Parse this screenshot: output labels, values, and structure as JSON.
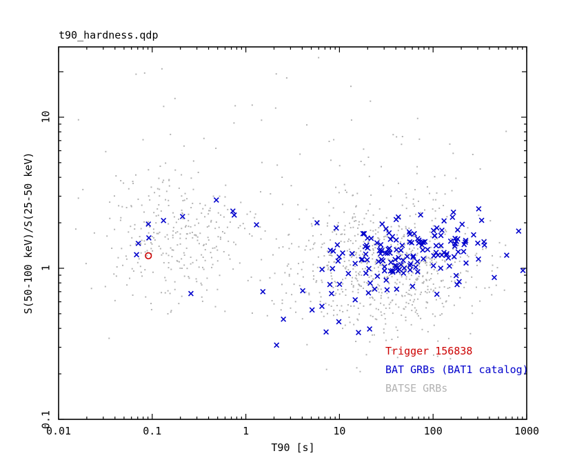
{
  "window": {
    "title": "t90_hardness.qdp"
  },
  "colors": {
    "background": "#ffffff",
    "frame": "#000000",
    "batse": "#b2b2b2",
    "bat": "#0000cc",
    "trigger": "#cc0000"
  },
  "chart_data": {
    "type": "scatter",
    "title": "t90_hardness.qdp",
    "xlabel": "T90 [s]",
    "ylabel": "S(50-100 keV)/S(25-50 keV)",
    "x_axis": {
      "scale": "log",
      "min": 0.01,
      "max": 1000,
      "tick_values": [
        0.01,
        0.1,
        1,
        10,
        100,
        1000
      ],
      "tick_labels": [
        "0.01",
        "0.1",
        "1",
        "10",
        "100",
        "1000"
      ]
    },
    "y_axis": {
      "scale": "log",
      "min": 0.1,
      "max": 29.2,
      "tick_values": [
        0.1,
        1,
        10
      ],
      "tick_labels": [
        "0.1",
        "1",
        "10"
      ],
      "semi_major_ticks": [
        20
      ]
    },
    "grid": false,
    "legend": {
      "position": "inside-bottom-right",
      "items": [
        {
          "slug": "trigger",
          "label": "Trigger 156838",
          "color": "#cc0000"
        },
        {
          "slug": "bat",
          "label": "BAT GRBs (BAT1 catalog)",
          "color": "#0000cc"
        },
        {
          "slug": "batse",
          "label": "BATSE GRBs",
          "color": "#b2b2b2"
        }
      ]
    },
    "seed": 13,
    "series": [
      {
        "slug": "batse-grb",
        "name": "BATSE GRBs",
        "marker": "dot",
        "color": "#b2b2b2",
        "generated_count": 1150,
        "clusters": [
          {
            "weight": 0.64,
            "mu_logx": 1.53,
            "sigma_logx": 0.52,
            "mu_logy": 0.01,
            "sigma_logy": 0.21
          },
          {
            "weight": 0.26,
            "mu_logx": -0.73,
            "sigma_logx": 0.42,
            "mu_logy": 0.22,
            "sigma_logy": 0.22
          },
          {
            "weight": 0.1,
            "mu_logx": 0.9,
            "sigma_logx": 1.05,
            "mu_logy": 0.5,
            "sigma_logy": 0.42
          }
        ],
        "points": [
          [
            0.127,
            20.9
          ],
          [
            0.083,
            19.6
          ],
          [
            0.175,
            13.3
          ],
          [
            0.77,
            11.9
          ]
        ]
      },
      {
        "slug": "bat-grb",
        "name": "BAT GRBs (BAT1 catalog)",
        "marker": "x",
        "color": "#0000cc",
        "generated_count": 160,
        "clusters": [
          {
            "weight": 0.97,
            "mu_logx": 1.72,
            "sigma_logx": 0.45,
            "mu_logy": 0.1,
            "sigma_logy": 0.115
          },
          {
            "weight": 0.03,
            "mu_logx": 1.0,
            "sigma_logx": 0.35,
            "mu_logy": -0.28,
            "sigma_logy": 0.12
          }
        ],
        "points": [
          [
            0.068,
            1.23
          ],
          [
            0.071,
            1.46
          ],
          [
            0.092,
            1.59
          ],
          [
            0.091,
            1.96
          ],
          [
            0.132,
            2.07
          ],
          [
            0.211,
            2.2
          ],
          [
            0.484,
            2.83
          ],
          [
            0.727,
            2.39
          ],
          [
            0.752,
            2.25
          ],
          [
            1.3,
            1.94
          ],
          [
            0.259,
            0.68
          ],
          [
            1.52,
            0.7
          ],
          [
            4.05,
            0.71
          ],
          [
            8.23,
            0.68
          ],
          [
            5.1,
            0.53
          ],
          [
            6.5,
            0.56
          ],
          [
            2.52,
            0.46
          ],
          [
            2.13,
            0.31
          ],
          [
            611,
            1.22
          ]
        ]
      },
      {
        "slug": "trigger-156838",
        "name": "Trigger 156838",
        "marker": "circle",
        "color": "#cc0000",
        "points": [
          [
            0.091,
            1.21
          ]
        ]
      }
    ]
  }
}
